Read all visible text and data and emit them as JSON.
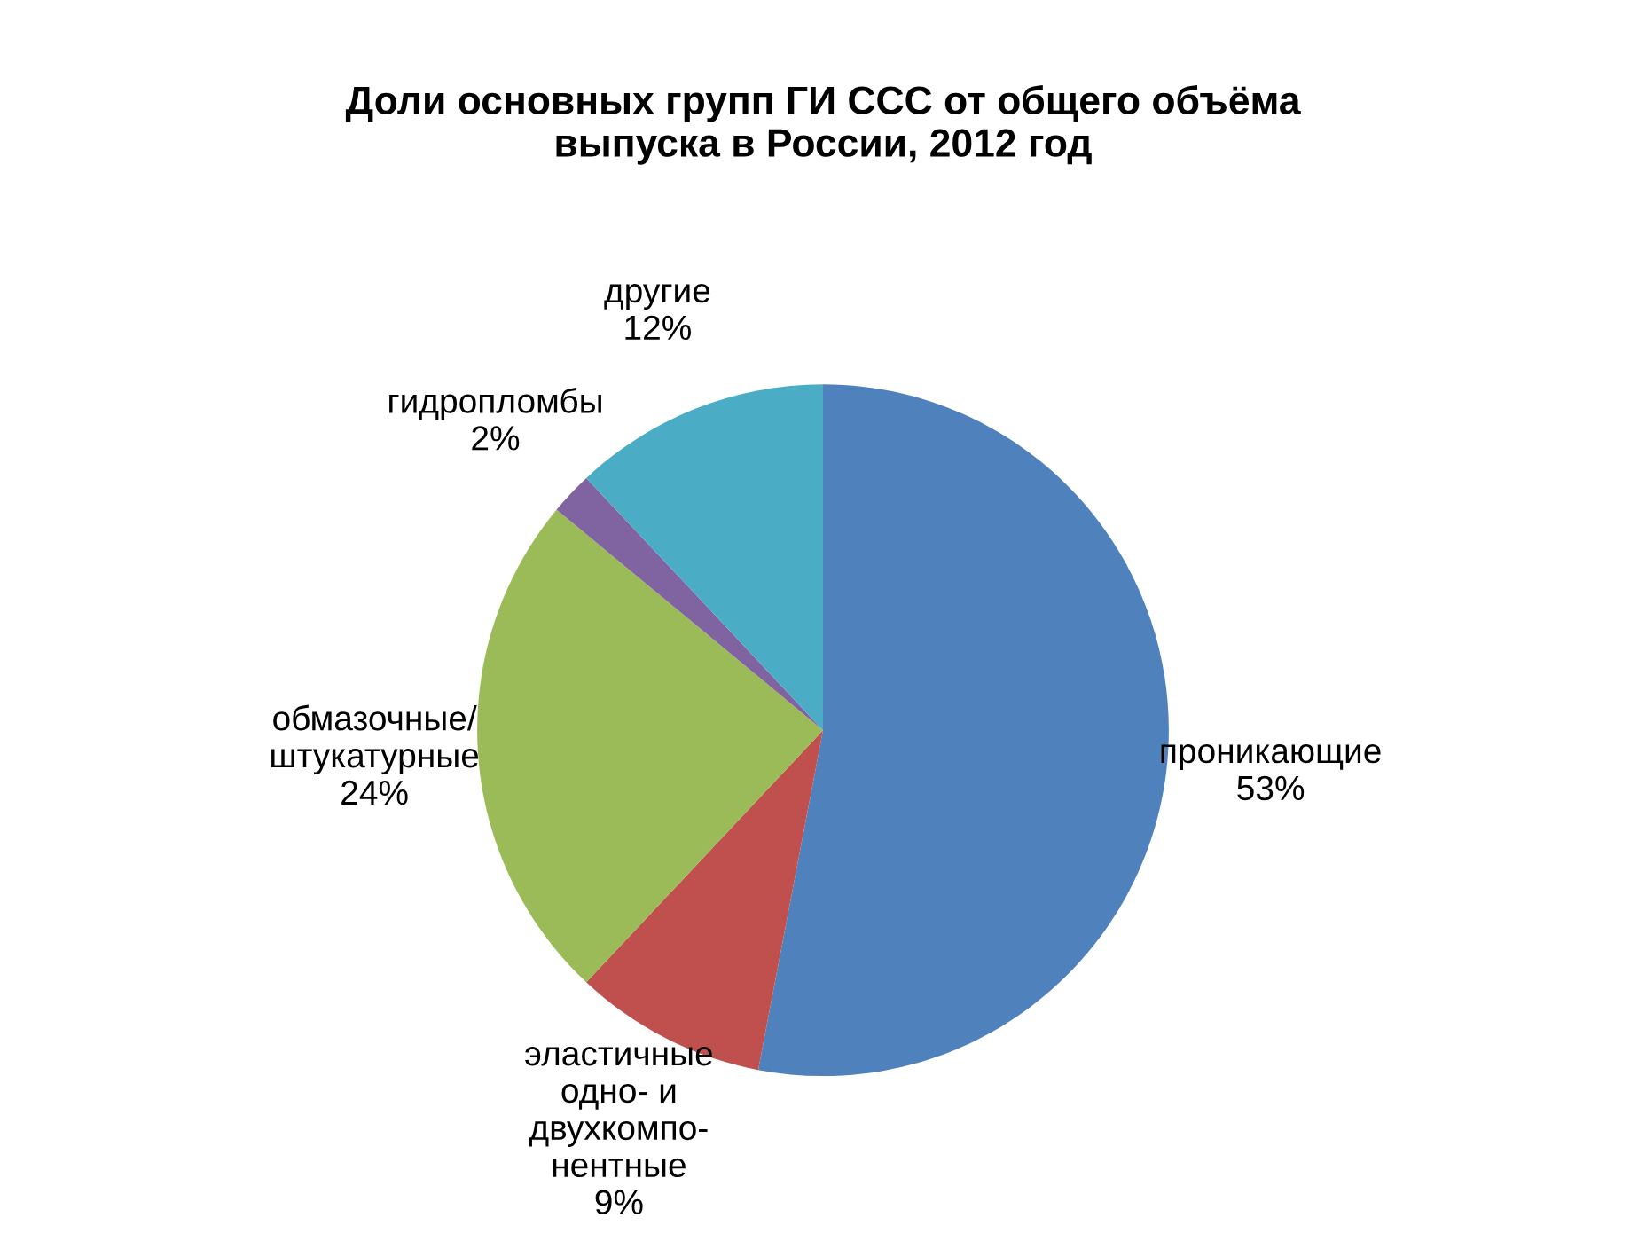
{
  "chart_data": {
    "type": "pie",
    "title": "Доли основных групп ГИ ССС от общего объёма\nвыпуска в России, 2012 год",
    "categories": [
      "проникающие",
      "эластичные\nодно- и\nдвухкомпо-\nнентные",
      "обмазочные/\nштукатурные",
      "гидропломбы",
      "другие"
    ],
    "values": [
      53,
      9,
      24,
      2,
      12
    ],
    "value_labels": [
      "53%",
      "9%",
      "24%",
      "2%",
      "12%"
    ],
    "colors": [
      "#4f81bd",
      "#c0504d",
      "#9bbb59",
      "#8064a2",
      "#4bacc6"
    ]
  }
}
